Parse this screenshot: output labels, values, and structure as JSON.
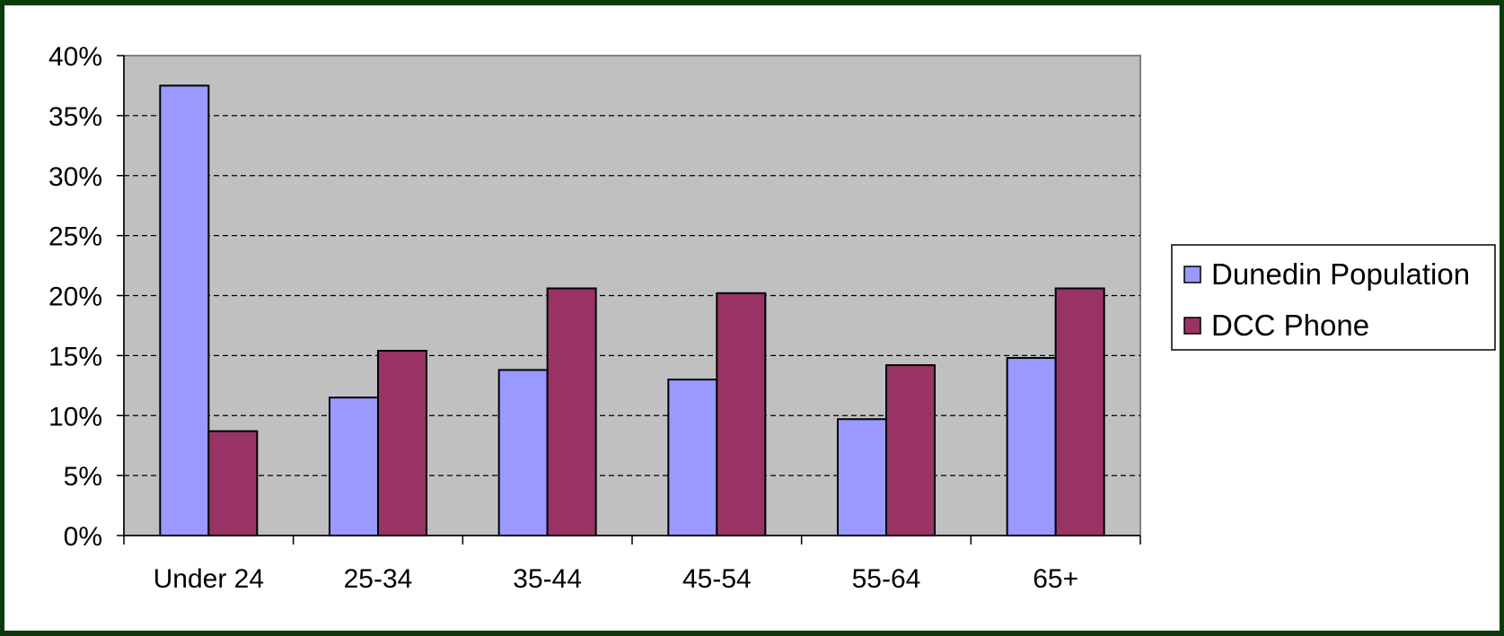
{
  "chart_data": {
    "type": "bar",
    "categories": [
      "Under 24",
      "25-34",
      "35-44",
      "45-54",
      "55-64",
      "65+"
    ],
    "series": [
      {
        "name": "Dunedin Population",
        "color": "#9999FF",
        "values": [
          37.5,
          11.5,
          13.8,
          13.0,
          9.7,
          14.8
        ]
      },
      {
        "name": "DCC Phone",
        "color": "#993366",
        "values": [
          8.7,
          15.4,
          20.6,
          20.2,
          14.2,
          20.6
        ]
      }
    ],
    "ylim": [
      0,
      40
    ],
    "yticks": [
      0,
      5,
      10,
      15,
      20,
      25,
      30,
      35,
      40
    ],
    "ytick_suffix": "%",
    "grid": true,
    "legend_position": "right",
    "plot_background": "#C0C0C0"
  }
}
